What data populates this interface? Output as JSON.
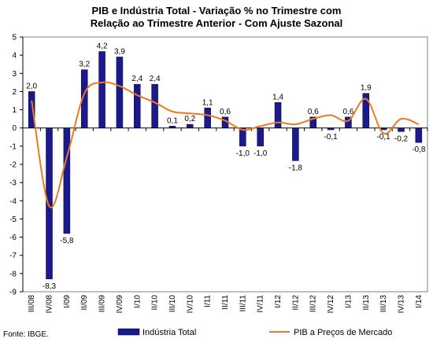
{
  "chart_data": {
    "type": "bar",
    "title_line1": "PIB e Indústria Total - Variação % no Trimestre com",
    "title_line2": "Relação ao Trimestre Anterior - Com Ajuste Sazonal",
    "categories": [
      "III/08",
      "IV/08",
      "I/09",
      "II/09",
      "III/09",
      "IV/09",
      "I/10",
      "II/10",
      "III/10",
      "IV/10",
      "I/11",
      "II/11",
      "III/11",
      "IV/11",
      "I/12",
      "II/12",
      "III/12",
      "IV/12",
      "I/13",
      "II/13",
      "III/13",
      "IV/13",
      "I/14"
    ],
    "ylim": [
      -9,
      5
    ],
    "yticks": [
      5,
      4,
      3,
      2,
      1,
      0,
      -1,
      -2,
      -3,
      -4,
      -5,
      -6,
      -7,
      -8,
      -9
    ],
    "grid": false,
    "legend_position": "bottom",
    "series": [
      {
        "name": "Indústria Total",
        "type": "bar",
        "color": "#1a1a8c",
        "values": [
          2.0,
          -8.3,
          -5.8,
          3.2,
          4.2,
          3.9,
          2.4,
          2.4,
          0.1,
          0.2,
          1.1,
          0.6,
          -1.0,
          -1.0,
          1.4,
          -1.8,
          0.6,
          -0.1,
          0.6,
          1.9,
          -0.1,
          -0.2,
          -0.8
        ],
        "labels": [
          "2,0",
          "-8,3",
          "-5,8",
          "3,2",
          "4,2",
          "3,9",
          "2,4",
          "2,4",
          "0,1",
          "0,2",
          "1,1",
          "0,6",
          "-1,0",
          "-1,0",
          "1,4",
          "-1,8",
          "0,6",
          "-0,1",
          "0,6",
          "1,9",
          "-0,1",
          "-0,2",
          "-0,8"
        ]
      },
      {
        "name": "PIB a Preços de Mercado",
        "type": "line",
        "color": "#f07820",
        "values": [
          1.5,
          -4.3,
          -1.6,
          1.9,
          2.5,
          2.3,
          1.8,
          1.4,
          0.9,
          0.8,
          0.7,
          0.4,
          -0.1,
          0.1,
          0.3,
          0.2,
          0.5,
          0.7,
          0.4,
          1.6,
          -0.3,
          0.5,
          0.2
        ]
      }
    ],
    "source": "Fonte: IBGE."
  }
}
